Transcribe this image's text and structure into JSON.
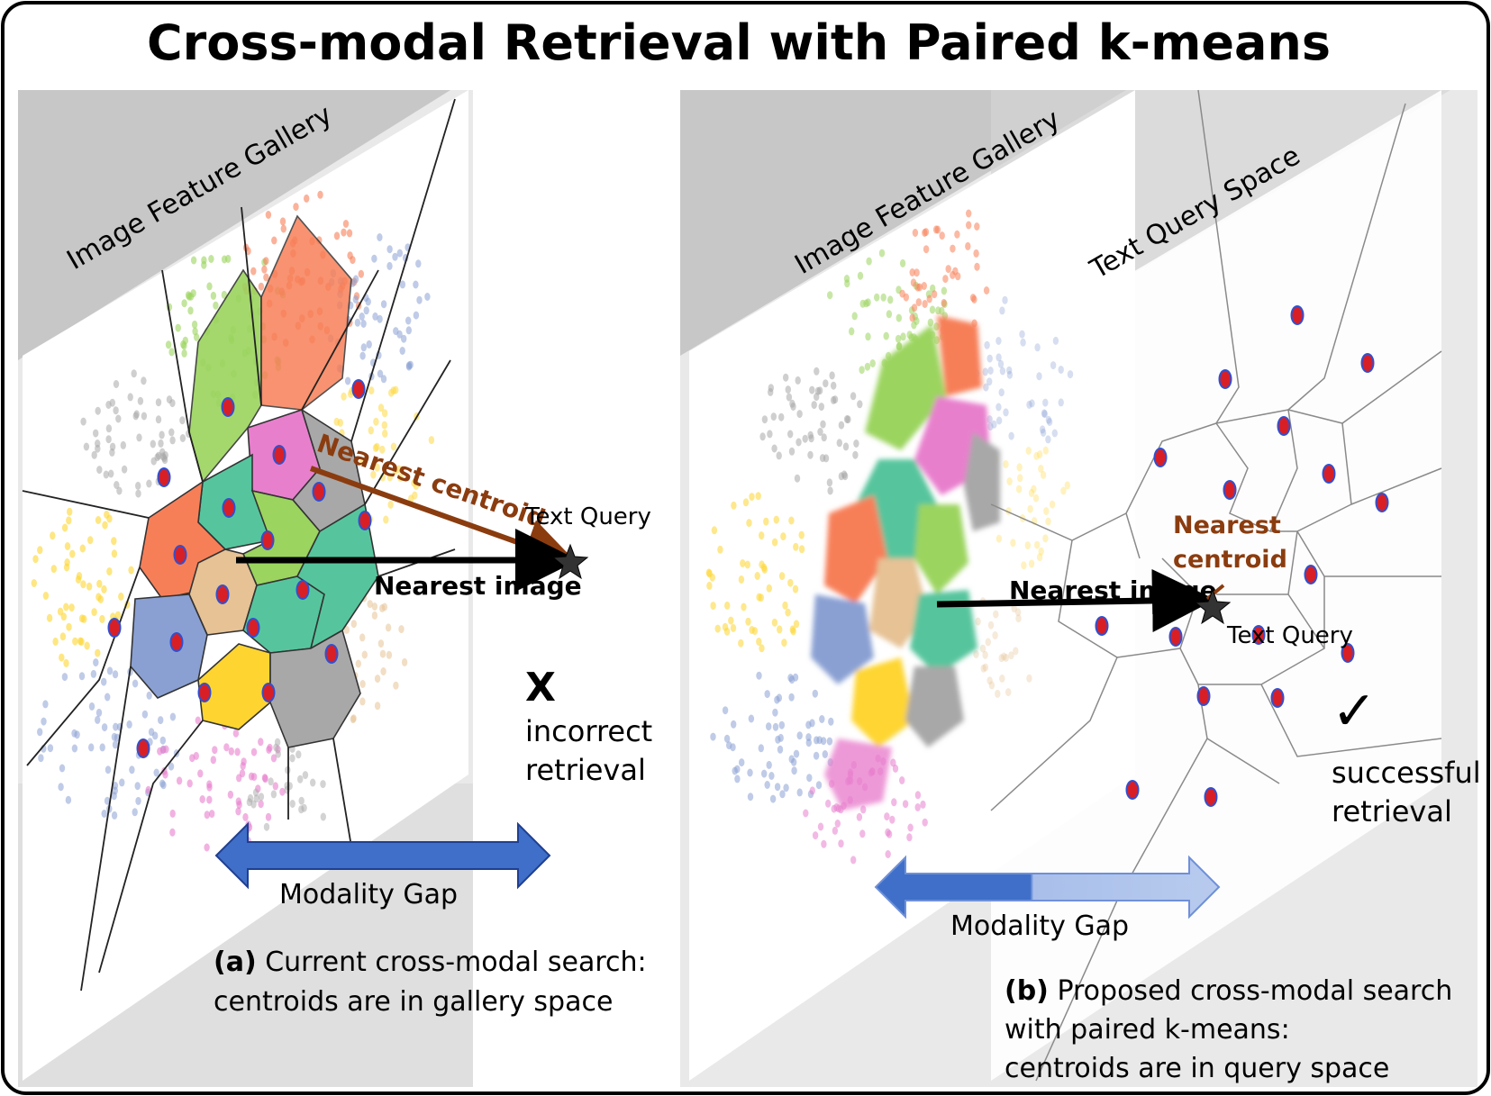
{
  "title": "Cross-modal Retrieval with Paired k-means",
  "panel_a": {
    "gallery_label": "Image Feature Gallery",
    "nearest_centroid_label": "Nearest centroid",
    "text_query_label": "Text Query",
    "nearest_image_label": "Nearest image",
    "result_mark": "X",
    "result_line1": "incorrect",
    "result_line2": "retrieval",
    "gap_label": "Modality Gap",
    "caption_tag": "(a)",
    "caption_line1": " Current cross-modal search:",
    "caption_line2": "centroids are in gallery space"
  },
  "panel_b": {
    "gallery_label": "Image Feature Gallery",
    "query_space_label": "Text Query Space",
    "nearest_centroid_line1": "Nearest",
    "nearest_centroid_line2": "centroid",
    "nearest_image_label": "Nearest image",
    "text_query_label": "Text Query",
    "result_mark": "✓",
    "result_line1": "successful",
    "result_line2": "retrieval",
    "gap_label": "Modality Gap",
    "caption_tag": "(b)",
    "caption_line1": " Proposed cross-modal search",
    "caption_line2": "with paired k-means:",
    "caption_line3": "centroids are in query space"
  },
  "colors": {
    "orange": "#f77f58",
    "green": "#9bd45e",
    "pink": "#e87fcd",
    "blue": "#8aa0d3",
    "teal": "#56c59d",
    "tan": "#e6c295",
    "yellow": "#fed530",
    "gray": "#a8a8a8",
    "arrow_brown": "#8b3c0f",
    "gap_arrow": "#3f6fc8",
    "centroid_red": "#d81f26",
    "centroid_blue": "#3050d0"
  }
}
